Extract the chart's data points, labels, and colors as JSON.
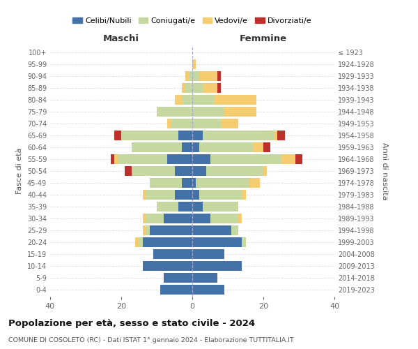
{
  "age_groups": [
    "0-4",
    "5-9",
    "10-14",
    "15-19",
    "20-24",
    "25-29",
    "30-34",
    "35-39",
    "40-44",
    "45-49",
    "50-54",
    "55-59",
    "60-64",
    "65-69",
    "70-74",
    "75-79",
    "80-84",
    "85-89",
    "90-94",
    "95-99",
    "100+"
  ],
  "birth_years": [
    "2019-2023",
    "2014-2018",
    "2009-2013",
    "2004-2008",
    "1999-2003",
    "1994-1998",
    "1989-1993",
    "1984-1988",
    "1979-1983",
    "1974-1978",
    "1969-1973",
    "1964-1968",
    "1959-1963",
    "1954-1958",
    "1949-1953",
    "1944-1948",
    "1939-1943",
    "1934-1938",
    "1929-1933",
    "1924-1928",
    "≤ 1923"
  ],
  "male": {
    "celibi": [
      9,
      8,
      14,
      11,
      14,
      12,
      8,
      4,
      5,
      3,
      5,
      7,
      3,
      4,
      0,
      0,
      0,
      0,
      0,
      0,
      0
    ],
    "coniugati": [
      0,
      0,
      0,
      0,
      1,
      1,
      5,
      6,
      8,
      9,
      12,
      14,
      14,
      16,
      6,
      10,
      3,
      2,
      1,
      0,
      0
    ],
    "vedovi": [
      0,
      0,
      0,
      0,
      1,
      1,
      1,
      0,
      1,
      0,
      0,
      1,
      0,
      0,
      1,
      0,
      2,
      1,
      1,
      0,
      0
    ],
    "divorziati": [
      0,
      0,
      0,
      0,
      0,
      0,
      0,
      0,
      0,
      0,
      2,
      1,
      0,
      2,
      0,
      0,
      0,
      0,
      0,
      0,
      0
    ]
  },
  "female": {
    "nubili": [
      9,
      7,
      14,
      9,
      14,
      11,
      5,
      3,
      2,
      1,
      4,
      5,
      2,
      3,
      0,
      0,
      0,
      0,
      0,
      0,
      0
    ],
    "coniugate": [
      0,
      0,
      0,
      0,
      1,
      2,
      8,
      10,
      12,
      15,
      16,
      20,
      15,
      20,
      8,
      9,
      6,
      3,
      2,
      0,
      0
    ],
    "vedove": [
      0,
      0,
      0,
      0,
      0,
      0,
      1,
      0,
      1,
      3,
      1,
      4,
      3,
      1,
      5,
      9,
      12,
      4,
      5,
      1,
      0
    ],
    "divorziate": [
      0,
      0,
      0,
      0,
      0,
      0,
      0,
      0,
      0,
      0,
      0,
      2,
      2,
      2,
      0,
      0,
      0,
      1,
      1,
      0,
      0
    ]
  },
  "colors": {
    "celibi": "#4472a8",
    "coniugati": "#c5d8a0",
    "vedovi": "#f5cc70",
    "divorziati": "#c0302a"
  },
  "title": "Popolazione per età, sesso e stato civile - 2024",
  "subtitle": "COMUNE DI COSOLETO (RC) - Dati ISTAT 1° gennaio 2024 - Elaborazione TUTTITALIA.IT",
  "xlabel_left": "Maschi",
  "xlabel_right": "Femmine",
  "ylabel_left": "Fasce di età",
  "ylabel_right": "Anni di nascita",
  "xlim": 40,
  "legend_labels": [
    "Celibi/Nubili",
    "Coniugati/e",
    "Vedovi/e",
    "Divorziati/e"
  ],
  "background_color": "#ffffff",
  "grid_color": "#cccccc"
}
